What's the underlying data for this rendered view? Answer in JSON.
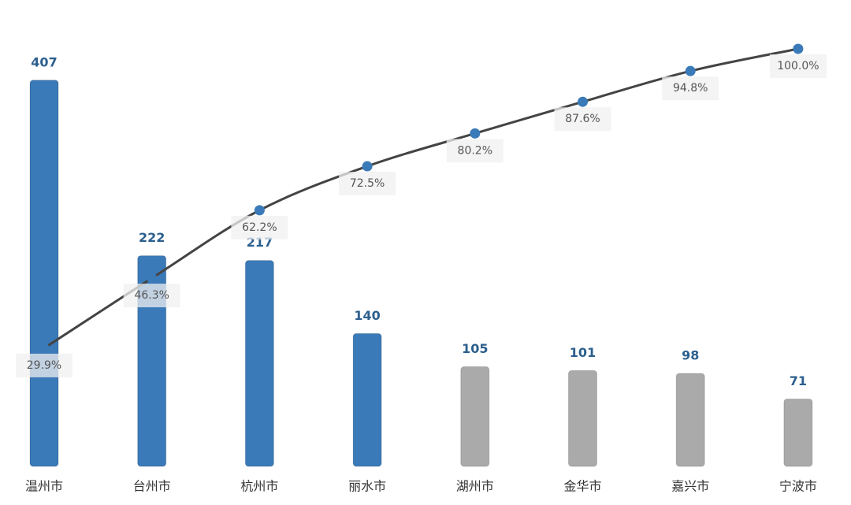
{
  "chart_data": {
    "type": "pareto",
    "categories": [
      "温州市",
      "台州市",
      "杭州市",
      "丽水市",
      "湖州市",
      "金华市",
      "嘉兴市",
      "宁波市"
    ],
    "series": [
      {
        "type": "bar",
        "values": [
          407,
          222,
          217,
          140,
          105,
          101,
          98,
          71
        ],
        "colors": [
          "#3a7ab8",
          "#3a7ab8",
          "#3a7ab8",
          "#3a7ab8",
          "#aaaaaa",
          "#aaaaaa",
          "#aaaaaa",
          "#aaaaaa"
        ]
      },
      {
        "type": "line",
        "axis": "y2",
        "color": "#444444",
        "marker_color": "#3a7ab8",
        "values": [
          29.9,
          46.3,
          62.2,
          72.5,
          80.2,
          87.6,
          94.8,
          100.0
        ],
        "value_labels": [
          "29.9%",
          "46.3%",
          "62.2%",
          "72.5%",
          "80.2%",
          "87.6%",
          "94.8%",
          "100.0%"
        ]
      }
    ],
    "ylim": [
      0,
      450
    ],
    "y2lim": [
      0,
      100
    ]
  }
}
